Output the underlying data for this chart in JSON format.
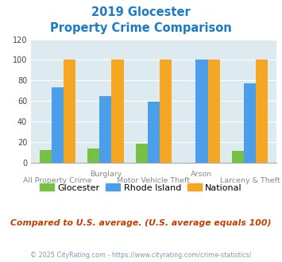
{
  "title_line1": "2019 Glocester",
  "title_line2": "Property Crime Comparison",
  "x_labels_top": [
    "",
    "Burglary",
    "",
    "Arson",
    ""
  ],
  "x_labels_bottom": [
    "All Property Crime",
    "",
    "Motor Vehicle Theft",
    "",
    "Larceny & Theft"
  ],
  "glocester": [
    12,
    14,
    18,
    0,
    11
  ],
  "rhode_island": [
    73,
    65,
    59,
    100,
    77
  ],
  "national": [
    100,
    100,
    100,
    100,
    100
  ],
  "glocester_color": "#76c043",
  "rhode_island_color": "#4b9fea",
  "national_color": "#f5a623",
  "ylim": [
    0,
    120
  ],
  "yticks": [
    0,
    20,
    40,
    60,
    80,
    100,
    120
  ],
  "background_color": "#ddeaf0",
  "title_color": "#1a7ac8",
  "footer_note": "Compared to U.S. average. (U.S. average equals 100)",
  "footer_color": "#c04000",
  "copyright": "© 2025 CityRating.com - https://www.cityrating.com/crime-statistics/",
  "copyright_color": "#8899aa",
  "legend_labels": [
    "Glocester",
    "Rhode Island",
    "National"
  ],
  "bar_width": 0.25
}
